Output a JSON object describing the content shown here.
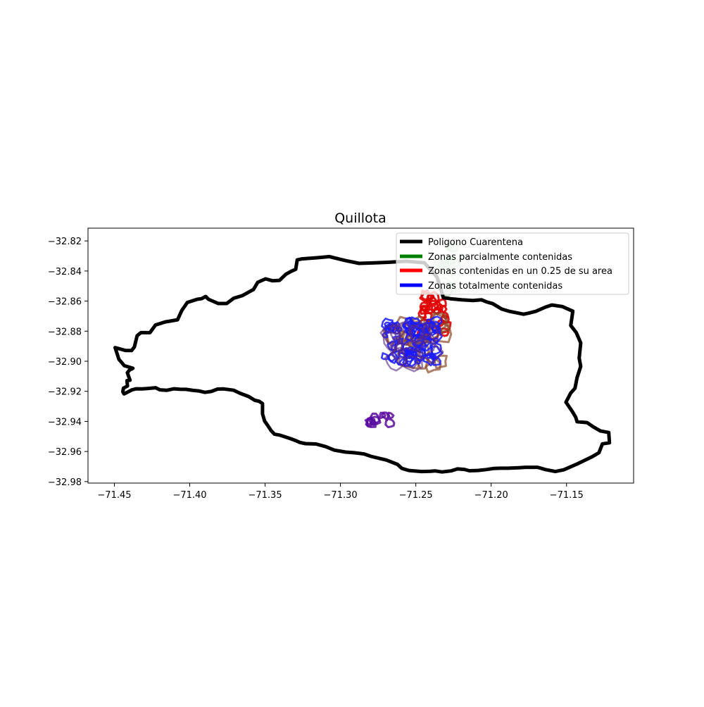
{
  "chart_data": {
    "type": "map",
    "title": "Quillota",
    "xlim": [
      -71.4675,
      -71.1055
    ],
    "ylim": [
      -32.981,
      -32.8115
    ],
    "x_ticks": [
      -71.45,
      -71.4,
      -71.35,
      -71.3,
      -71.25,
      -71.2,
      -71.15
    ],
    "x_tick_labels": [
      "−71.45",
      "−71.40",
      "−71.35",
      "−71.30",
      "−71.25",
      "−71.20",
      "−71.15"
    ],
    "y_ticks": [
      -32.82,
      -32.84,
      -32.86,
      -32.88,
      -32.9,
      -32.92,
      -32.94,
      -32.96,
      -32.98
    ],
    "y_tick_labels": [
      "−32.82",
      "−32.84",
      "−32.86",
      "−32.88",
      "−32.90",
      "−32.92",
      "−32.94",
      "−32.96",
      "−32.98"
    ],
    "legend_position": "top-right",
    "legend": [
      {
        "label": "Poligono Cuarentena",
        "color": "#000000"
      },
      {
        "label": "Zonas parcialmente contenidas",
        "color": "#008000"
      },
      {
        "label": "Zonas contenidas en un 0.25 de su area",
        "color": "#ff0000"
      },
      {
        "label": "Zonas totalmente contenidas",
        "color": "#0000ff"
      }
    ],
    "quarantine_polygon": [
      [
        -71.4495,
        -32.8909
      ],
      [
        -71.4424,
        -32.8929
      ],
      [
        -71.4386,
        -32.8929
      ],
      [
        -71.4367,
        -32.8905
      ],
      [
        -71.4349,
        -32.883
      ],
      [
        -71.4324,
        -32.881
      ],
      [
        -71.4264,
        -32.881
      ],
      [
        -71.4227,
        -32.8759
      ],
      [
        -71.4162,
        -32.8738
      ],
      [
        -71.4081,
        -32.8724
      ],
      [
        -71.4053,
        -32.8663
      ],
      [
        -71.4016,
        -32.8609
      ],
      [
        -71.395,
        -32.8588
      ],
      [
        -71.3922,
        -32.8584
      ],
      [
        -71.3894,
        -32.8569
      ],
      [
        -71.3876,
        -32.8588
      ],
      [
        -71.3811,
        -32.8616
      ],
      [
        -71.3755,
        -32.8616
      ],
      [
        -71.3708,
        -32.8581
      ],
      [
        -71.3652,
        -32.8564
      ],
      [
        -71.3577,
        -32.8523
      ],
      [
        -71.3549,
        -32.8475
      ],
      [
        -71.3497,
        -32.8452
      ],
      [
        -71.3451,
        -32.8465
      ],
      [
        -71.3404,
        -32.8462
      ],
      [
        -71.3362,
        -32.8421
      ],
      [
        -71.3325,
        -32.8401
      ],
      [
        -71.3297,
        -32.8389
      ],
      [
        -71.3287,
        -32.8326
      ],
      [
        -71.3255,
        -32.8319
      ],
      [
        -71.3148,
        -32.8311
      ],
      [
        -71.3073,
        -32.8304
      ],
      [
        -71.3017,
        -32.8318
      ],
      [
        -71.2961,
        -32.8332
      ],
      [
        -71.291,
        -32.8342
      ],
      [
        -71.2877,
        -32.8349
      ],
      [
        -71.277,
        -32.8346
      ],
      [
        -71.2686,
        -32.8342
      ],
      [
        -71.2564,
        -32.8335
      ],
      [
        -71.2443,
        -32.8345
      ],
      [
        -71.2359,
        -32.8441
      ],
      [
        -71.2317,
        -32.8577
      ],
      [
        -71.2271,
        -32.8584
      ],
      [
        -71.2196,
        -32.8591
      ],
      [
        -71.2121,
        -32.8596
      ],
      [
        -71.2065,
        -32.8591
      ],
      [
        -71.2032,
        -32.8605
      ],
      [
        -71.199,
        -32.8617
      ],
      [
        -71.193,
        -32.8653
      ],
      [
        -71.1883,
        -32.8667
      ],
      [
        -71.1785,
        -32.8687
      ],
      [
        -71.1752,
        -32.868
      ],
      [
        -71.1701,
        -32.8667
      ],
      [
        -71.164,
        -32.864
      ],
      [
        -71.1598,
        -32.8626
      ],
      [
        -71.1528,
        -32.8636
      ],
      [
        -71.1458,
        -32.8667
      ],
      [
        -71.1472,
        -32.8762
      ],
      [
        -71.1435,
        -32.881
      ],
      [
        -71.1406,
        -32.8878
      ],
      [
        -71.1416,
        -32.8979
      ],
      [
        -71.1406,
        -32.9034
      ],
      [
        -71.143,
        -32.9109
      ],
      [
        -71.1444,
        -32.918
      ],
      [
        -71.1472,
        -32.9211
      ],
      [
        -71.1504,
        -32.9272
      ],
      [
        -71.1462,
        -32.9334
      ],
      [
        -71.1439,
        -32.9372
      ],
      [
        -71.143,
        -32.9402
      ],
      [
        -71.1364,
        -32.9408
      ],
      [
        -71.1323,
        -32.9436
      ],
      [
        -71.1276,
        -32.9463
      ],
      [
        -71.122,
        -32.9474
      ],
      [
        -71.1215,
        -32.9542
      ],
      [
        -71.1262,
        -32.9549
      ],
      [
        -71.1285,
        -32.9608
      ],
      [
        -71.1327,
        -32.9633
      ],
      [
        -71.1425,
        -32.9681
      ],
      [
        -71.1519,
        -32.9722
      ],
      [
        -71.1575,
        -32.9733
      ],
      [
        -71.164,
        -32.972
      ],
      [
        -71.1692,
        -32.9705
      ],
      [
        -71.1771,
        -32.9705
      ],
      [
        -71.1818,
        -32.9708
      ],
      [
        -71.1888,
        -32.9711
      ],
      [
        -71.1934,
        -32.9711
      ],
      [
        -71.1986,
        -32.9713
      ],
      [
        -71.2032,
        -32.972
      ],
      [
        -71.2088,
        -32.9726
      ],
      [
        -71.2145,
        -32.9728
      ],
      [
        -71.2177,
        -32.9719
      ],
      [
        -71.2224,
        -32.9716
      ],
      [
        -71.2266,
        -32.9729
      ],
      [
        -71.2326,
        -32.9736
      ],
      [
        -71.2373,
        -32.9729
      ],
      [
        -71.2401,
        -32.9732
      ],
      [
        -71.2462,
        -32.9733
      ],
      [
        -71.2546,
        -32.9726
      ],
      [
        -71.2593,
        -32.9712
      ],
      [
        -71.2621,
        -32.9686
      ],
      [
        -71.2695,
        -32.9657
      ],
      [
        -71.2737,
        -32.9647
      ],
      [
        -71.2798,
        -32.9632
      ],
      [
        -71.2844,
        -32.9616
      ],
      [
        -71.291,
        -32.9608
      ],
      [
        -71.2966,
        -32.9604
      ],
      [
        -71.3041,
        -32.9591
      ],
      [
        -71.3097,
        -32.9568
      ],
      [
        -71.3162,
        -32.955
      ],
      [
        -71.3232,
        -32.9548
      ],
      [
        -71.3269,
        -32.954
      ],
      [
        -71.3297,
        -32.9527
      ],
      [
        -71.3339,
        -32.9512
      ],
      [
        -71.34,
        -32.9492
      ],
      [
        -71.3437,
        -32.9485
      ],
      [
        -71.3461,
        -32.946
      ],
      [
        -71.3484,
        -32.9425
      ],
      [
        -71.3503,
        -32.9398
      ],
      [
        -71.3517,
        -32.935
      ],
      [
        -71.3517,
        -32.9282
      ],
      [
        -71.354,
        -32.9266
      ],
      [
        -71.3568,
        -32.926
      ],
      [
        -71.361,
        -32.9234
      ],
      [
        -71.3666,
        -32.9213
      ],
      [
        -71.3708,
        -32.9193
      ],
      [
        -71.3774,
        -32.9184
      ],
      [
        -71.3815,
        -32.9185
      ],
      [
        -71.3857,
        -32.9201
      ],
      [
        -71.3899,
        -32.9207
      ],
      [
        -71.3941,
        -32.9197
      ],
      [
        -71.3978,
        -32.9194
      ],
      [
        -71.4025,
        -32.9187
      ],
      [
        -71.4067,
        -32.9186
      ],
      [
        -71.4104,
        -32.9183
      ],
      [
        -71.4151,
        -32.9193
      ],
      [
        -71.4198,
        -32.919
      ],
      [
        -71.4226,
        -32.9176
      ],
      [
        -71.4282,
        -32.9181
      ],
      [
        -71.4316,
        -32.9184
      ],
      [
        -71.4353,
        -32.9183
      ],
      [
        -71.4383,
        -32.919
      ],
      [
        -71.4414,
        -32.9206
      ],
      [
        -71.4436,
        -32.9217
      ],
      [
        -71.4444,
        -32.9203
      ],
      [
        -71.444,
        -32.9179
      ],
      [
        -71.4413,
        -32.9165
      ],
      [
        -71.4416,
        -32.9129
      ],
      [
        -71.4396,
        -32.9126
      ],
      [
        -71.4405,
        -32.9102
      ],
      [
        -71.4414,
        -32.9076
      ],
      [
        -71.4399,
        -32.9058
      ],
      [
        -71.4377,
        -32.9047
      ],
      [
        -71.4434,
        -32.9029
      ],
      [
        -71.447,
        -32.8987
      ],
      [
        -71.4495,
        -32.8909
      ]
    ]
  }
}
